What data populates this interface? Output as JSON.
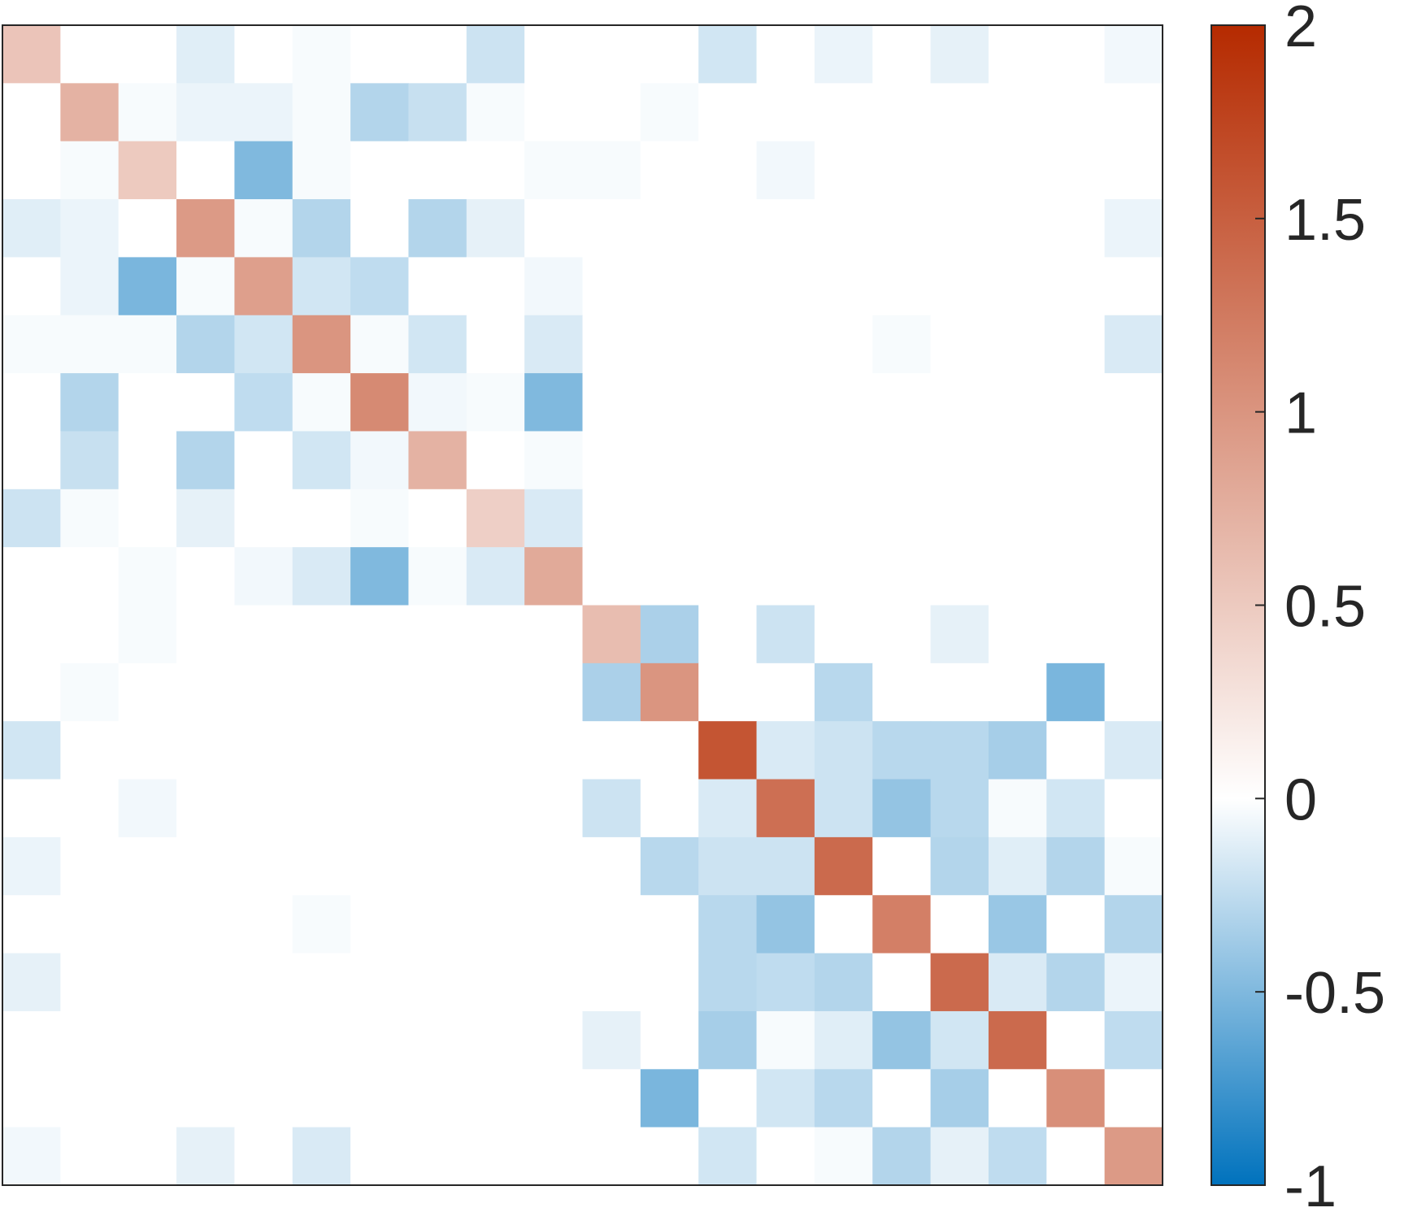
{
  "chart_data": {
    "type": "heatmap",
    "title": "",
    "xlabel": "",
    "ylabel": "",
    "rows": 20,
    "cols": 20,
    "colorbar": {
      "min": -1,
      "max": 2,
      "ticks": [
        -1,
        -0.5,
        0,
        0.5,
        1,
        1.5,
        2
      ],
      "tick_labels": [
        "-1",
        "-0.5",
        "0",
        "0.5",
        "1",
        "1.5",
        "2"
      ],
      "colors": {
        "low": "#0072bd",
        "mid": "#ffffff",
        "high": "#b52a00"
      },
      "location": "right"
    },
    "matrix": [
      [
        0.55,
        0,
        0,
        -0.12,
        0,
        -0.03,
        0,
        0,
        -0.2,
        0,
        0,
        0,
        -0.18,
        0,
        -0.08,
        0,
        -0.1,
        0,
        0,
        -0.05
      ],
      [
        0,
        0.72,
        -0.03,
        -0.08,
        -0.08,
        -0.03,
        -0.3,
        -0.22,
        -0.03,
        0,
        0,
        -0.03,
        0,
        0,
        0,
        0,
        0,
        0,
        0,
        0
      ],
      [
        0,
        -0.03,
        0.5,
        0,
        -0.5,
        -0.03,
        0,
        0,
        0,
        -0.03,
        -0.03,
        0,
        0,
        -0.05,
        0,
        0,
        0,
        0,
        0,
        0
      ],
      [
        -0.12,
        -0.08,
        0,
        0.95,
        -0.03,
        -0.3,
        0,
        -0.3,
        -0.1,
        0,
        0,
        0,
        0,
        0,
        0,
        0,
        0,
        0,
        0,
        -0.08
      ],
      [
        0,
        -0.08,
        -0.52,
        -0.03,
        0.9,
        -0.18,
        -0.25,
        0,
        0,
        -0.05,
        0,
        0,
        0,
        0,
        0,
        0,
        0,
        0,
        0,
        0
      ],
      [
        -0.03,
        -0.03,
        -0.03,
        -0.3,
        -0.18,
        1.0,
        -0.03,
        -0.18,
        0,
        -0.15,
        0,
        0,
        0,
        0,
        0,
        -0.03,
        0,
        0,
        0,
        -0.15
      ],
      [
        0,
        -0.3,
        0,
        0,
        -0.25,
        -0.03,
        1.1,
        -0.05,
        -0.03,
        -0.5,
        0,
        0,
        0,
        0,
        0,
        0,
        0,
        0,
        0,
        0
      ],
      [
        0,
        -0.22,
        0,
        -0.3,
        0,
        -0.18,
        -0.05,
        0.72,
        0,
        -0.03,
        0,
        0,
        0,
        0,
        0,
        0,
        0,
        0,
        0,
        0
      ],
      [
        -0.2,
        -0.03,
        0,
        -0.1,
        0,
        0,
        -0.03,
        0,
        0.45,
        -0.15,
        0,
        0,
        0,
        0,
        0,
        0,
        0,
        0,
        0,
        0
      ],
      [
        0,
        0,
        -0.03,
        0,
        -0.05,
        -0.15,
        -0.5,
        -0.03,
        -0.15,
        0.8,
        0,
        0,
        0,
        0,
        0,
        0,
        0,
        0,
        0,
        0
      ],
      [
        0,
        0,
        -0.03,
        0,
        0,
        0,
        0,
        0,
        0,
        0,
        0.62,
        -0.33,
        0,
        -0.2,
        0,
        0,
        -0.1,
        0,
        0,
        0
      ],
      [
        0,
        -0.03,
        0,
        0,
        0,
        0,
        0,
        0,
        0,
        0,
        -0.33,
        1.0,
        0,
        0,
        -0.28,
        0,
        0,
        0,
        -0.52,
        0
      ],
      [
        -0.18,
        0,
        0,
        0,
        0,
        0,
        0,
        0,
        0,
        0,
        0,
        0,
        1.6,
        -0.15,
        -0.2,
        -0.28,
        -0.28,
        -0.35,
        0,
        -0.15
      ],
      [
        0,
        0,
        -0.05,
        0,
        0,
        0,
        0,
        0,
        0,
        0,
        -0.2,
        0,
        -0.15,
        1.35,
        -0.2,
        -0.42,
        -0.28,
        -0.03,
        -0.18,
        0
      ],
      [
        -0.08,
        0,
        0,
        0,
        0,
        0,
        0,
        0,
        0,
        0,
        0,
        -0.28,
        -0.2,
        -0.2,
        1.4,
        0,
        -0.3,
        -0.12,
        -0.3,
        -0.03
      ],
      [
        0,
        0,
        0,
        0,
        0,
        -0.03,
        0,
        0,
        0,
        0,
        0,
        0,
        -0.28,
        -0.42,
        0,
        1.2,
        0,
        -0.4,
        0,
        -0.3
      ],
      [
        -0.1,
        0,
        0,
        0,
        0,
        0,
        0,
        0,
        0,
        0,
        0,
        0,
        -0.28,
        -0.25,
        -0.3,
        0,
        1.4,
        -0.15,
        -0.3,
        -0.08
      ],
      [
        0,
        0,
        0,
        0,
        0,
        0,
        0,
        0,
        0,
        0,
        -0.1,
        0,
        -0.35,
        -0.03,
        -0.12,
        -0.42,
        -0.18,
        1.4,
        0,
        -0.25
      ],
      [
        0,
        0,
        0,
        0,
        0,
        0,
        0,
        0,
        0,
        0,
        0,
        -0.52,
        0,
        -0.18,
        -0.28,
        0,
        -0.35,
        0,
        1.05,
        0
      ],
      [
        -0.05,
        0,
        0,
        -0.1,
        0,
        -0.15,
        0,
        0,
        0,
        0,
        0,
        0,
        -0.18,
        0,
        -0.03,
        -0.3,
        -0.1,
        -0.25,
        0,
        0.95
      ]
    ]
  }
}
